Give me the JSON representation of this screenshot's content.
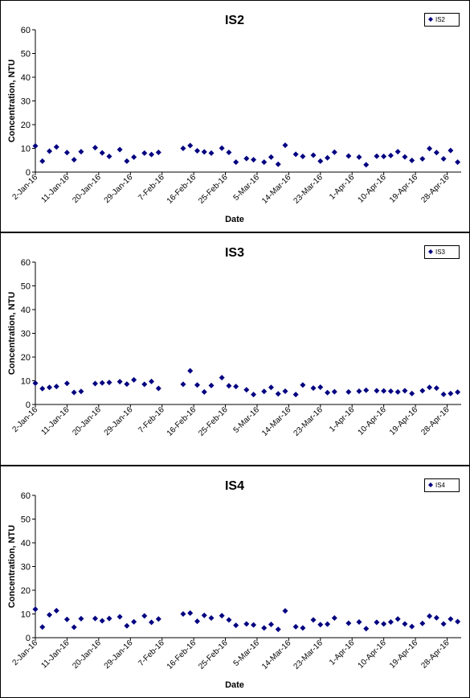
{
  "chart_data": [
    {
      "type": "scatter",
      "title": "IS2",
      "xlabel": "Date",
      "ylabel": "Concentration, NTU",
      "ylim": [
        0,
        60
      ],
      "yticks": [
        "0",
        "10",
        "20",
        "30",
        "40",
        "50",
        "60"
      ],
      "xlim": [
        "2016-01-02",
        "2016-05-02"
      ],
      "xticks": [
        "2-Jan-16",
        "11-Jan-16",
        "20-Jan-16",
        "29-Jan-16",
        "7-Feb-16",
        "16-Feb-16",
        "25-Feb-16",
        "5-Mar-16",
        "14-Mar-16",
        "23-Mar-16",
        "1-Apr-16",
        "10-Apr-16",
        "19-Apr-16",
        "28-Apr-16"
      ],
      "grid": false,
      "legend_position": "top-right",
      "marker": "diamond",
      "color": "#000080",
      "series": [
        {
          "name": "IS2",
          "points": [
            [
              "2016-01-02",
              11.0
            ],
            [
              "2016-01-04",
              4.6
            ],
            [
              "2016-01-06",
              8.8
            ],
            [
              "2016-01-08",
              10.6
            ],
            [
              "2016-01-11",
              8.2
            ],
            [
              "2016-01-13",
              5.2
            ],
            [
              "2016-01-15",
              8.6
            ],
            [
              "2016-01-19",
              10.3
            ],
            [
              "2016-01-21",
              8.1
            ],
            [
              "2016-01-23",
              6.6
            ],
            [
              "2016-01-26",
              9.5
            ],
            [
              "2016-01-28",
              4.6
            ],
            [
              "2016-01-30",
              6.3
            ],
            [
              "2016-02-02",
              8.0
            ],
            [
              "2016-02-04",
              7.4
            ],
            [
              "2016-02-06",
              8.3
            ],
            [
              "2016-02-13",
              10.0
            ],
            [
              "2016-02-15",
              11.2
            ],
            [
              "2016-02-17",
              9.0
            ],
            [
              "2016-02-19",
              8.5
            ],
            [
              "2016-02-21",
              8.0
            ],
            [
              "2016-02-24",
              10.1
            ],
            [
              "2016-02-26",
              8.3
            ],
            [
              "2016-02-28",
              4.2
            ],
            [
              "2016-03-02",
              5.7
            ],
            [
              "2016-03-04",
              5.2
            ],
            [
              "2016-03-07",
              4.2
            ],
            [
              "2016-03-09",
              6.3
            ],
            [
              "2016-03-11",
              3.3
            ],
            [
              "2016-03-13",
              11.3
            ],
            [
              "2016-03-16",
              7.5
            ],
            [
              "2016-03-18",
              6.6
            ],
            [
              "2016-03-21",
              7.1
            ],
            [
              "2016-03-23",
              4.6
            ],
            [
              "2016-03-25",
              6.0
            ],
            [
              "2016-03-27",
              8.4
            ],
            [
              "2016-03-31",
              6.8
            ],
            [
              "2016-04-03",
              6.3
            ],
            [
              "2016-04-05",
              3.1
            ],
            [
              "2016-04-08",
              6.7
            ],
            [
              "2016-04-10",
              6.6
            ],
            [
              "2016-04-12",
              7.0
            ],
            [
              "2016-04-14",
              8.6
            ],
            [
              "2016-04-16",
              6.4
            ],
            [
              "2016-04-18",
              4.9
            ],
            [
              "2016-04-21",
              5.6
            ],
            [
              "2016-04-23",
              9.9
            ],
            [
              "2016-04-25",
              8.2
            ],
            [
              "2016-04-27",
              5.6
            ],
            [
              "2016-04-29",
              9.1
            ],
            [
              "2016-05-01",
              4.2
            ]
          ]
        }
      ]
    },
    {
      "type": "scatter",
      "title": "IS3",
      "xlabel": "",
      "ylabel": "Concentration, NTU",
      "ylim": [
        0,
        60
      ],
      "yticks": [
        "0",
        "10",
        "20",
        "30",
        "40",
        "50",
        "60"
      ],
      "xlim": [
        "2016-01-02",
        "2016-05-02"
      ],
      "xticks": [
        "2-Jan-16",
        "11-Jan-16",
        "20-Jan-16",
        "29-Jan-16",
        "7-Feb-16",
        "16-Feb-16",
        "25-Feb-16",
        "5-Mar-16",
        "14-Mar-16",
        "23-Mar-16",
        "1-Apr-16",
        "10-Apr-16",
        "19-Apr-16",
        "28-Apr-16"
      ],
      "grid": false,
      "legend_position": "top-right",
      "marker": "diamond",
      "color": "#000080",
      "series": [
        {
          "name": "IS3",
          "points": [
            [
              "2016-01-02",
              9.0
            ],
            [
              "2016-01-04",
              6.7
            ],
            [
              "2016-01-06",
              7.2
            ],
            [
              "2016-01-08",
              7.6
            ],
            [
              "2016-01-11",
              8.9
            ],
            [
              "2016-01-13",
              5.1
            ],
            [
              "2016-01-15",
              5.5
            ],
            [
              "2016-01-19",
              8.8
            ],
            [
              "2016-01-21",
              9.1
            ],
            [
              "2016-01-23",
              9.3
            ],
            [
              "2016-01-26",
              9.6
            ],
            [
              "2016-01-28",
              8.6
            ],
            [
              "2016-01-30",
              10.4
            ],
            [
              "2016-02-02",
              8.5
            ],
            [
              "2016-02-04",
              9.7
            ],
            [
              "2016-02-06",
              6.8
            ],
            [
              "2016-02-13",
              8.5
            ],
            [
              "2016-02-15",
              14.2
            ],
            [
              "2016-02-17",
              8.2
            ],
            [
              "2016-02-19",
              5.3
            ],
            [
              "2016-02-21",
              8.0
            ],
            [
              "2016-02-24",
              11.3
            ],
            [
              "2016-02-26",
              7.9
            ],
            [
              "2016-02-28",
              7.6
            ],
            [
              "2016-03-02",
              6.2
            ],
            [
              "2016-03-04",
              4.2
            ],
            [
              "2016-03-07",
              5.5
            ],
            [
              "2016-03-09",
              7.2
            ],
            [
              "2016-03-11",
              4.5
            ],
            [
              "2016-03-13",
              5.6
            ],
            [
              "2016-03-16",
              4.2
            ],
            [
              "2016-03-18",
              8.2
            ],
            [
              "2016-03-21",
              6.9
            ],
            [
              "2016-03-23",
              7.3
            ],
            [
              "2016-03-25",
              5.0
            ],
            [
              "2016-03-27",
              5.4
            ],
            [
              "2016-03-31",
              5.3
            ],
            [
              "2016-04-03",
              5.6
            ],
            [
              "2016-04-05",
              6.0
            ],
            [
              "2016-04-08",
              5.8
            ],
            [
              "2016-04-10",
              5.7
            ],
            [
              "2016-04-12",
              5.6
            ],
            [
              "2016-04-14",
              5.3
            ],
            [
              "2016-04-16",
              5.8
            ],
            [
              "2016-04-18",
              4.6
            ],
            [
              "2016-04-21",
              5.8
            ],
            [
              "2016-04-23",
              7.2
            ],
            [
              "2016-04-25",
              6.9
            ],
            [
              "2016-04-27",
              4.3
            ],
            [
              "2016-04-29",
              4.6
            ],
            [
              "2016-05-01",
              5.2
            ]
          ]
        }
      ]
    },
    {
      "type": "scatter",
      "title": "IS4",
      "xlabel": "Date",
      "ylabel": "Concentration, NTU",
      "ylim": [
        0,
        60
      ],
      "yticks": [
        "0",
        "10",
        "20",
        "30",
        "40",
        "50",
        "60"
      ],
      "xlim": [
        "2016-01-02",
        "2016-05-02"
      ],
      "xticks": [
        "2-Jan-16",
        "11-Jan-16",
        "20-Jan-16",
        "29-Jan-16",
        "7-Feb-16",
        "16-Feb-16",
        "25-Feb-16",
        "5-Mar-16",
        "14-Mar-16",
        "23-Mar-16",
        "1-Apr-16",
        "10-Apr-16",
        "19-Apr-16",
        "28-Apr-16"
      ],
      "grid": false,
      "legend_position": "top-right",
      "marker": "diamond",
      "color": "#000080",
      "series": [
        {
          "name": "IS4",
          "points": [
            [
              "2016-01-02",
              12.0
            ],
            [
              "2016-01-04",
              4.5
            ],
            [
              "2016-01-06",
              9.6
            ],
            [
              "2016-01-08",
              11.4
            ],
            [
              "2016-01-11",
              7.7
            ],
            [
              "2016-01-13",
              4.4
            ],
            [
              "2016-01-15",
              8.0
            ],
            [
              "2016-01-19",
              8.1
            ],
            [
              "2016-01-21",
              7.1
            ],
            [
              "2016-01-23",
              8.1
            ],
            [
              "2016-01-26",
              8.8
            ],
            [
              "2016-01-28",
              5.0
            ],
            [
              "2016-01-30",
              6.7
            ],
            [
              "2016-02-02",
              9.2
            ],
            [
              "2016-02-04",
              6.5
            ],
            [
              "2016-02-06",
              7.9
            ],
            [
              "2016-02-13",
              10.0
            ],
            [
              "2016-02-15",
              10.4
            ],
            [
              "2016-02-17",
              6.9
            ],
            [
              "2016-02-19",
              9.4
            ],
            [
              "2016-02-21",
              8.3
            ],
            [
              "2016-02-24",
              9.3
            ],
            [
              "2016-02-26",
              7.5
            ],
            [
              "2016-02-28",
              5.2
            ],
            [
              "2016-03-02",
              5.8
            ],
            [
              "2016-03-04",
              5.4
            ],
            [
              "2016-03-07",
              4.1
            ],
            [
              "2016-03-09",
              5.6
            ],
            [
              "2016-03-11",
              3.5
            ],
            [
              "2016-03-13",
              11.3
            ],
            [
              "2016-03-16",
              4.6
            ],
            [
              "2016-03-18",
              4.1
            ],
            [
              "2016-03-21",
              7.5
            ],
            [
              "2016-03-23",
              5.5
            ],
            [
              "2016-03-25",
              5.7
            ],
            [
              "2016-03-27",
              8.3
            ],
            [
              "2016-03-31",
              6.1
            ],
            [
              "2016-04-03",
              6.6
            ],
            [
              "2016-04-05",
              3.8
            ],
            [
              "2016-04-08",
              6.5
            ],
            [
              "2016-04-10",
              5.8
            ],
            [
              "2016-04-12",
              6.6
            ],
            [
              "2016-04-14",
              7.9
            ],
            [
              "2016-04-16",
              5.8
            ],
            [
              "2016-04-18",
              4.7
            ],
            [
              "2016-04-21",
              6.0
            ],
            [
              "2016-04-23",
              9.1
            ],
            [
              "2016-04-25",
              8.4
            ],
            [
              "2016-04-27",
              5.8
            ],
            [
              "2016-04-29",
              7.9
            ],
            [
              "2016-05-01",
              6.8
            ]
          ]
        }
      ]
    }
  ]
}
